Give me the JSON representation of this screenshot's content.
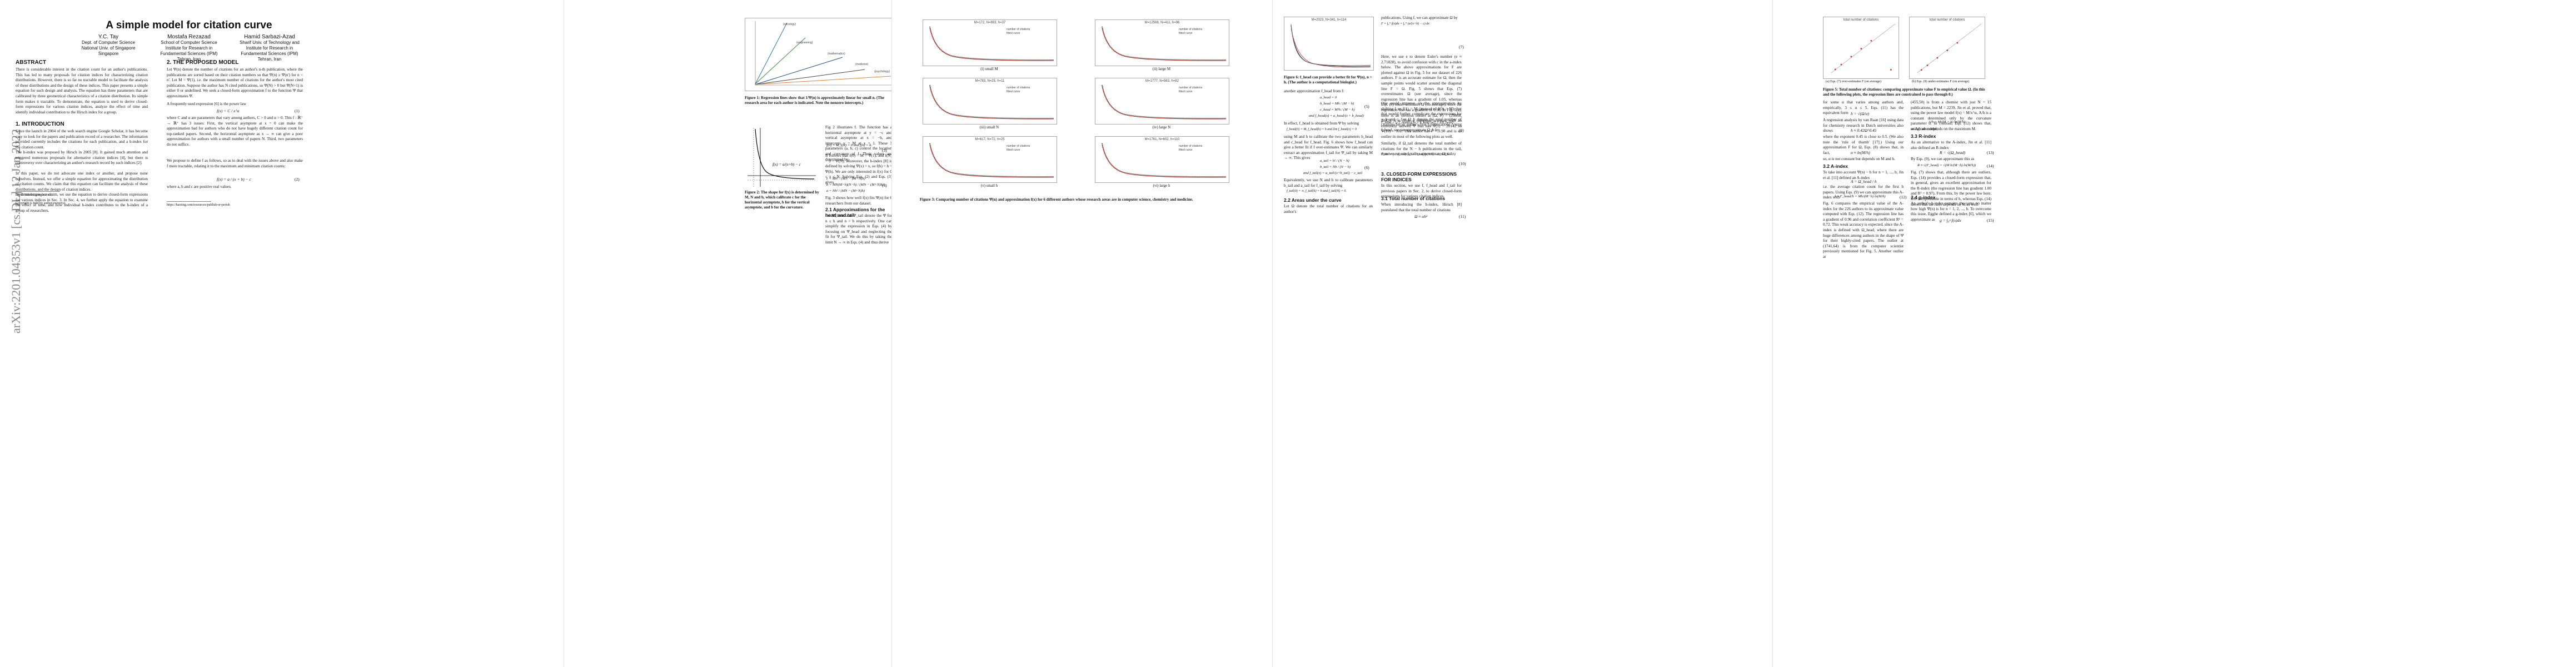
{
  "arxiv_stamp": "arXiv:2201.04353v1 [cs.DL] 12 Jan 2022",
  "title": "A simple model for citation curve",
  "authors": [
    {
      "name": "Y.C. Tay",
      "line1": "Dept. of Computer Science",
      "line2": "National Univ. of Singapore",
      "line3": "Singapore"
    },
    {
      "name": "Mostafa Rezazad",
      "line1": "School of Computer Science",
      "line2": "Institute for Research in",
      "line3": "Fundamental Sciences (IPM)",
      "line4": "Tehran, Iran"
    },
    {
      "name": "Hamid Sarbazi-Azad",
      "line1": "Sharif Univ. of Technology and",
      "line2": "Institute for Research in",
      "line3": "Fundamental Sciences (IPM)",
      "line4": "Tehran, Iran"
    }
  ],
  "page1": {
    "abstract_head": "ABSTRACT",
    "abstract": "There is considerable interest in the citation count for an author's publications. This has led to many proposals for citation indices for characterizing citation distributions. However, there is so far no tractable model to facilitate the analysis of these distributions and the design of these indices. This paper presents a simple equation for such design and analysis. The equation has three parameters that are calibrated by three geometrical characteristics of a citation distribution. Its simple form makes it tractable. To demonstrate, the equation is used to derive closed-form expressions for various citation indices, analyze the effect of time and identify individual contribution to the Hirsch index for a group.",
    "intro_head": "1. INTRODUCTION",
    "intro_p1": "Since the launch in 2004 of the web search engine Google Scholar, it has become easy to look for the papers and publication record of a researcher. The information provided currently includes the citations for each publication, and a h-index for the citation count.",
    "intro_p2": "The h-index was proposed by Hirsch in 2005 [8]. It gained much attention and triggered numerous proposals for alternative citation indices [4], but there is controversy over characterizing an author's research record by such indices [2].",
    "intro_p3": "In this paper, we do not advocate one index or another, and propose none ourselves. Instead, we offer a simple equation for approximating the distribution of citation counts. We claim that this equation can facilitate the analysis of these distributions, and the design of citation indices.",
    "intro_p4": "To demonstrate our claim, we use the equation to derive closed-form expressions for various indices in Sec. 3. In Sec. 4, we further apply the equation to examine the effect of time, and how individual h-index contributes to the h-index of a group of researchers.",
    "footnote1": "https://scholar.google.com/",
    "copyright": "Copyright is held by author/owner(s).",
    "sec2_head": "2. THE PROPOSED MODEL",
    "sec2_p1": "Let Ψ(n) denote the number of citations for an author's n-th publication, where the publications are sorted based on their citation numbers so that Ψ(n) ≥ Ψ(n') for n < n'. Let M = Ψ(1), i.e. the maximum number of citations for the author's most cited publication. Suppose the author has N cited publications, so Ψ(N) > 0 but Ψ(N+1) is either 0 or undefined. We seek a closed-form approximation f to the function Ψ that approximates Ψ.",
    "sec2_p2": "A frequently used expression [6] is the power law",
    "eq1": "f(x) = C / x^α",
    "eq1_num": "(1)",
    "sec2_p3": "where C and α are parameters that vary among authors, C > 0 and α > 0. This f : ℝ⁺ → ℝ⁺ has 3 issues: First, the vertical asymptote at x = 0 can make the approximation bad for authors who do not have hugely different citation count for top-ranked papers. Second, the horizontal asymptote as x → ∞ can give a poor approximation for authors with a small number of papers N. Third, two parameters do not suffice.",
    "sec2_p4": "We propose to define f as follows, so as to deal with the issues above and also make f more tractable, relating it to the maximum and minimum citation counts:",
    "eq2": "f(x) = a / (x + b) − c",
    "eq2_num": "(2)",
    "sec2_p5": "where a, b and c are positive real values.",
    "footnote2": "https://harzing.com/resources/publish-or-perish"
  },
  "page2": {
    "fig1_caption": "Figure 1: Regression lines show that 1/Ψ(n) is approximately linear for small n. (The research area for each author is indicated. Note the nonzero intercepts.)",
    "fig1_labels": [
      "(oncology)",
      "(engineering)",
      "(mathematics)",
      "(medicine)",
      "(psychology)"
    ],
    "fig2_caption": "Figure 2: The shape for f(x) is determined by M, N and b, which calibrate c for the horizontal asymptote, b for the vertical asymptote, and b for the curvature.",
    "fig2_eq": "f(x) = a/(x+b) − c",
    "right_p1": "Fig 2 illustrates f. The function has a horizontal asymptote at y = −c and vertical asymptote at x = −b, and intercepts y = M at x = 1. These 3 parameters (a, b, c) control the location and curvature of f. Their values are determined by",
    "eq3": "f(0) = M,   f(N) = 0   and   f(h) = h.",
    "eq3_num": "(3)",
    "right_p2": "It follows that f(0) = M = Ψ(1), and f(N) = 0 = Ψ(N). Moreover, the h-index [8] is defined by solving Ψ(x) = x, so f(h) = h = Ψ(h). We are only interested in f(x) for 0 ≤ x ≤ N. Solving Eqs. (2) and Eqs. (3) gives",
    "eq4a": "c = Mh² / (MN − (M+N)h)",
    "eq4b": "b = MN(M−h)(N−h) / (MN − (M+N)h)²",
    "eq4c": "a = Nh² / (MN − (M+N)h)",
    "eq4_num": "(4)",
    "right_p3": "Fig. 3 shows how well f(x) fits Ψ(n) for 6 researchers from our dataset.",
    "sec21_head": "2.1 Approximations for the head and tail",
    "sec21_p1": "Let Ψ_head and Ψ_tail denote the Ψ for n ≤ h and n > h respectively. One can simplify the expression in Eqs. (4) by focusing on Ψ_head and neglecting the fit for Ψ_tail. We do this by taking the limit N → ∞ in Eqs. (4) and thus derive"
  },
  "page3": {
    "panels": [
      {
        "title": "M=172, N=883, h=37",
        "label": "(i) small M"
      },
      {
        "title": "M=12568, N=411, h=96",
        "label": "(ii) large M"
      },
      {
        "title": "M=783, N=25, h=11",
        "label": "(iii) small N"
      },
      {
        "title": "M=1777, N=563, h=82",
        "label": "(iv) large N"
      },
      {
        "title": "M=617, N=72, h=25",
        "label": "(v) small h"
      },
      {
        "title": "M=1761, N=602, h=110",
        "label": "(vi) large h"
      }
    ],
    "legend_a": "number of citations",
    "legend_b": "fitted curve",
    "caption": "Figure 3: Comparing number of citations Ψ(n) and approximation f(x) for 6 different authors whose research areas are in computer science, chemistry and medicine."
  },
  "page4": {
    "fig6_title": "M=2023, N=341, h=114",
    "fig6_caption": "Figure 6: f_head can provide a better fit for Ψ(n), n > h. (The author is a computational biologist.)",
    "left_p1": "another approximation f_head from f:",
    "eq5a": "a_head = 0",
    "eq5b": "b_head = Mh / (M − h)",
    "eq5c": "c_head = M²h / (M − h)",
    "eq5d": "and f_head(x) = a_head/(x + b_head)",
    "eq5_num": "(5)",
    "left_p2": "In effect, f_head is obtained from Ψ by solving",
    "eq6": "f_head(0) = M,  f_head(h) = h  and  lim f_head(x) = 0",
    "left_p3": "using M and h to calibrate the two parameters b_head and c_head for f_head. Fig. 6 shows how f_head can give a better fit if f over-estimates Ψ. We can similarly extract an approximation f_tail for Ψ_tail by taking M → ∞. This gives",
    "eq7a": "a_tail = h² / (N − h)",
    "eq7b": "b_tail = Nh / (N − h)",
    "eq7c": "and f_tail(x) = a_tail/(x+b_tail) − c_tail",
    "eq7_num": "(6)",
    "left_p4": "Equivalently, we use N and h to calibrate parameters b_tail and a_tail for f_tail by solving",
    "eq8": "f_tail(0) = ∞,   f_tail(h) = h   and   f_tail(N) = 0.",
    "sec22_head": "2.2 Areas under the curve",
    "sec22_p1": "Let Ω denote the total number of citations for an author's",
    "right_p1": "publications. Using f, we can approximate Ω by",
    "eq9": "F = ∫₀ᴺ f(x)dx = ∫₀ᴺ (a/(x+b) − c) dx",
    "eq9_num": "(7)",
    "right_p2": "Here, we use e to denote Euler's number (e ≈ 2.71828), to avoid confusion with c in the a-index below. The above approximations for F are plotted against Ω in Fig. 5 for our dataset of 226 authors. F is an accurate estimate for Ω, then the sample points would scatter around the diagonal line F = Ω. Fig. 5 shows that Eqs. (7) overestimates Ω (see average), since the regression line has a gradient of 1.05, whereas Eqs. (8) under-estimates Ω (on average), since the regression line has a gradient of 0.98. In Fig. 5(a), there is an obvious outlier at (Ω, F) = (29868, 2042); it is from a computer scientist with an extremely skewed Ψ that has Ψ(1) = 26142 so Ψ(10) = 102. This author has F = 3.98 and is an outlier in most of the following plots as well.",
    "right_p3": "One could improve on the approximation by shifting f so f(1) = M (instead of f(0) = M), but that would further complicate the expressions for a, b and c. Let Ω_h denote the total number of citations for an author's first h publications. Using f_head, we can approximate Ω_h by",
    "eq10": "F_head = ∫₀ʰ f_head(x) dx = b_head ln(1 + h/b_head)",
    "eq10_num": "(9)",
    "right_p4": "Similarly, if Ω_tail denotes the total number of citations for the N − h publications in the tail, then we can use f_tail to approximate Ω_tail:",
    "eq11": "F_tail = ∫ₕᴺ f_tail(x)dx = b_tail ln(N/h) − c_tail(N − h)",
    "eq11_num": "(10)",
    "sec3_head": "3. CLOSED-FORM EXPRESSIONS FOR INDICES",
    "sec3_p1": "In this section, we use f, f_head and f_tail for previous papers in Sec. 2, to derive closed-form expressions for various citation indices.",
    "sec31_head": "3.1 Total number of citations",
    "sec31_p1": "When introducing the h-index, Hirsch [8] postulated that the total number of citations",
    "eq12": "Ω ≈ αh²",
    "eq12_num": "(11)"
  },
  "page5": {
    "plot_left_title": "total number of citations",
    "plot_right_title": "total number of citations",
    "left_xlabel": "total number of citations Ω",
    "right_xlabel": "total number of citations Ω",
    "left_ylabel": "approximate value F",
    "right_ylabel": "approximate value F",
    "sub_a": "(a) Eqs. (7) over-estimates F (on average)",
    "sub_b": "(b) Eqs. (8) under-estimates F (on average)",
    "caption": "Figure 5: Total number of citations: comparing approximate value F to empirical value Ω. (In this and the following plots, the regression lines are constrained to pass through 0.)",
    "col1_p1": "for some α that varies among authors and, empirically, 3 ≤ α ≤ 5. Eqs. (11) has the equivalent form",
    "eq13": "h = √(Ω/α)",
    "col1_p2": "A regression analysis by van Raan [16] using data for chemistry research in Dutch universities also shows",
    "eq14": "h ≈ 0.42Ω^0.45",
    "col1_p3": "where the exponent 0.45 is close to 0.5. (We also note the 'rule of thumb' [17].) Using our approximation F for Ω, Eqs. (8) shows that, in fact,",
    "eq15": "α ≈ ln(M/h)",
    "col1_p4": "so, α is not constant but depends on M and h.",
    "col2_p1": "(455,50) is from a chemist with just N = 15 publications, but M = 2239. Jin et al. proved that, using the power law model f(x) = M/x^α, A/h is a constant determined only by the curvature parameter α. In contrast, Eqs. (12) shows that, using our model,",
    "eq16": "A/h = M/(M − h) ln(M/h)",
    "col2_p2": "so A/h also depends on the maximum M.",
    "sec33_head": "3.3 R-index",
    "sec33_p1": "As an alternative to the A-index, Jin et al. [11] also defined an R-index",
    "eq17": "R = √(Ω_head)",
    "sec32_head": "3.2 A-index",
    "sec32_p1": "To take into account Ψ(n) − h for n = 1, ..., h, Jin et al. [11] defined an A-index",
    "eq18": "A = Ω_head / h",
    "sec32_p2": "i.e. the average citation count for the first h papers. Using Eqs. (9) we can approximate this A-index with",
    "eq19": "A ≈ F_head/h = Mh/(M−h) ln(M/h)",
    "sec32_p3": "Fig. 6 compares the empirical value of the A-index for the 226 authors to its approximate value computed with Eqs. (12). The regression line has a gradient of 0.96 and correlation coefficient R² = 0.72. This weak accuracy is expected, since the A-index is defined with Ω_head, where there are huge differences among authors in the shape of Ψ for their highly-cited papers. The outlier at (1741,64) is from the computer scientist previously mentioned for Fig. 5. Another outlier at",
    "col2_p3": "By Eqs. (9), we can approximate this as",
    "eq20": "R ≈ √(F_head) = √(M h/(M−h) ln(M/h))",
    "col2_p4": "Fig. (7) shows that, although there are outliers, Eqs. (14) provides a closed-form expression that, in general, gives an excellent approximation for the R-index (the regression line has gradient 1.00 and R² = 0.97). From this, by the power law here, R/h is expressible in terms of h, whereas Eqs. (14) shows that the ratio depends on M as well.",
    "sec34_head": "3.4 g-index",
    "sec34_p1": "An author's h-index remains the same no matter how high Ψ(n) is for n = 1, 2, ..., h. To overcome this issue, Egghe defined a g-index [6], which we approximate as",
    "eq21": "g = ∫₀ᵍ f(x)dx",
    "eq21_num": "(15)",
    "eq_nums": [
      "(12)",
      "(13)",
      "(14)"
    ]
  },
  "chart_data": [
    {
      "type": "scatter",
      "title": "Figure 1: 1/Ψ(n) vs n",
      "xlabel": "n",
      "ylabel": "1/Ψ(n)",
      "series": [
        {
          "name": "oncology",
          "values": [
            [
              1,
              0.02
            ],
            [
              10,
              0.055
            ],
            [
              20,
              0.09
            ],
            [
              25,
              0.11
            ]
          ]
        },
        {
          "name": "engineering",
          "values": [
            [
              1,
              0.01
            ],
            [
              20,
              0.04
            ],
            [
              40,
              0.065
            ],
            [
              55,
              0.08
            ]
          ]
        },
        {
          "name": "mathematics",
          "values": [
            [
              1,
              0.004
            ],
            [
              40,
              0.02
            ],
            [
              80,
              0.035
            ],
            [
              110,
              0.045
            ]
          ]
        },
        {
          "name": "medicine",
          "values": [
            [
              1,
              0.002
            ],
            [
              60,
              0.01
            ],
            [
              120,
              0.016
            ],
            [
              160,
              0.02
            ]
          ]
        },
        {
          "name": "psychology",
          "values": [
            [
              1,
              0.001
            ],
            [
              100,
              0.004
            ],
            [
              200,
              0.008
            ],
            [
              240,
              0.01
            ]
          ]
        }
      ]
    },
    {
      "type": "scatter",
      "title": "Figure 5(a): F vs Ω",
      "xlabel": "total number of citations",
      "ylabel": "approximate value",
      "series": [
        {
          "name": "authors",
          "values": [
            [
              2000,
              2200
            ],
            [
              5000,
              5400
            ],
            [
              10000,
              10600
            ],
            [
              15000,
              15800
            ],
            [
              20000,
              21000
            ],
            [
              29868,
              2042
            ]
          ]
        }
      ]
    },
    {
      "type": "scatter",
      "title": "Figure 5(b): F vs Ω",
      "xlabel": "total number of citations",
      "ylabel": "approximate value",
      "series": [
        {
          "name": "authors",
          "values": [
            [
              2000,
              1900
            ],
            [
              5000,
              4900
            ],
            [
              10000,
              9800
            ],
            [
              15000,
              14700
            ],
            [
              20000,
              19600
            ]
          ]
        }
      ]
    }
  ]
}
